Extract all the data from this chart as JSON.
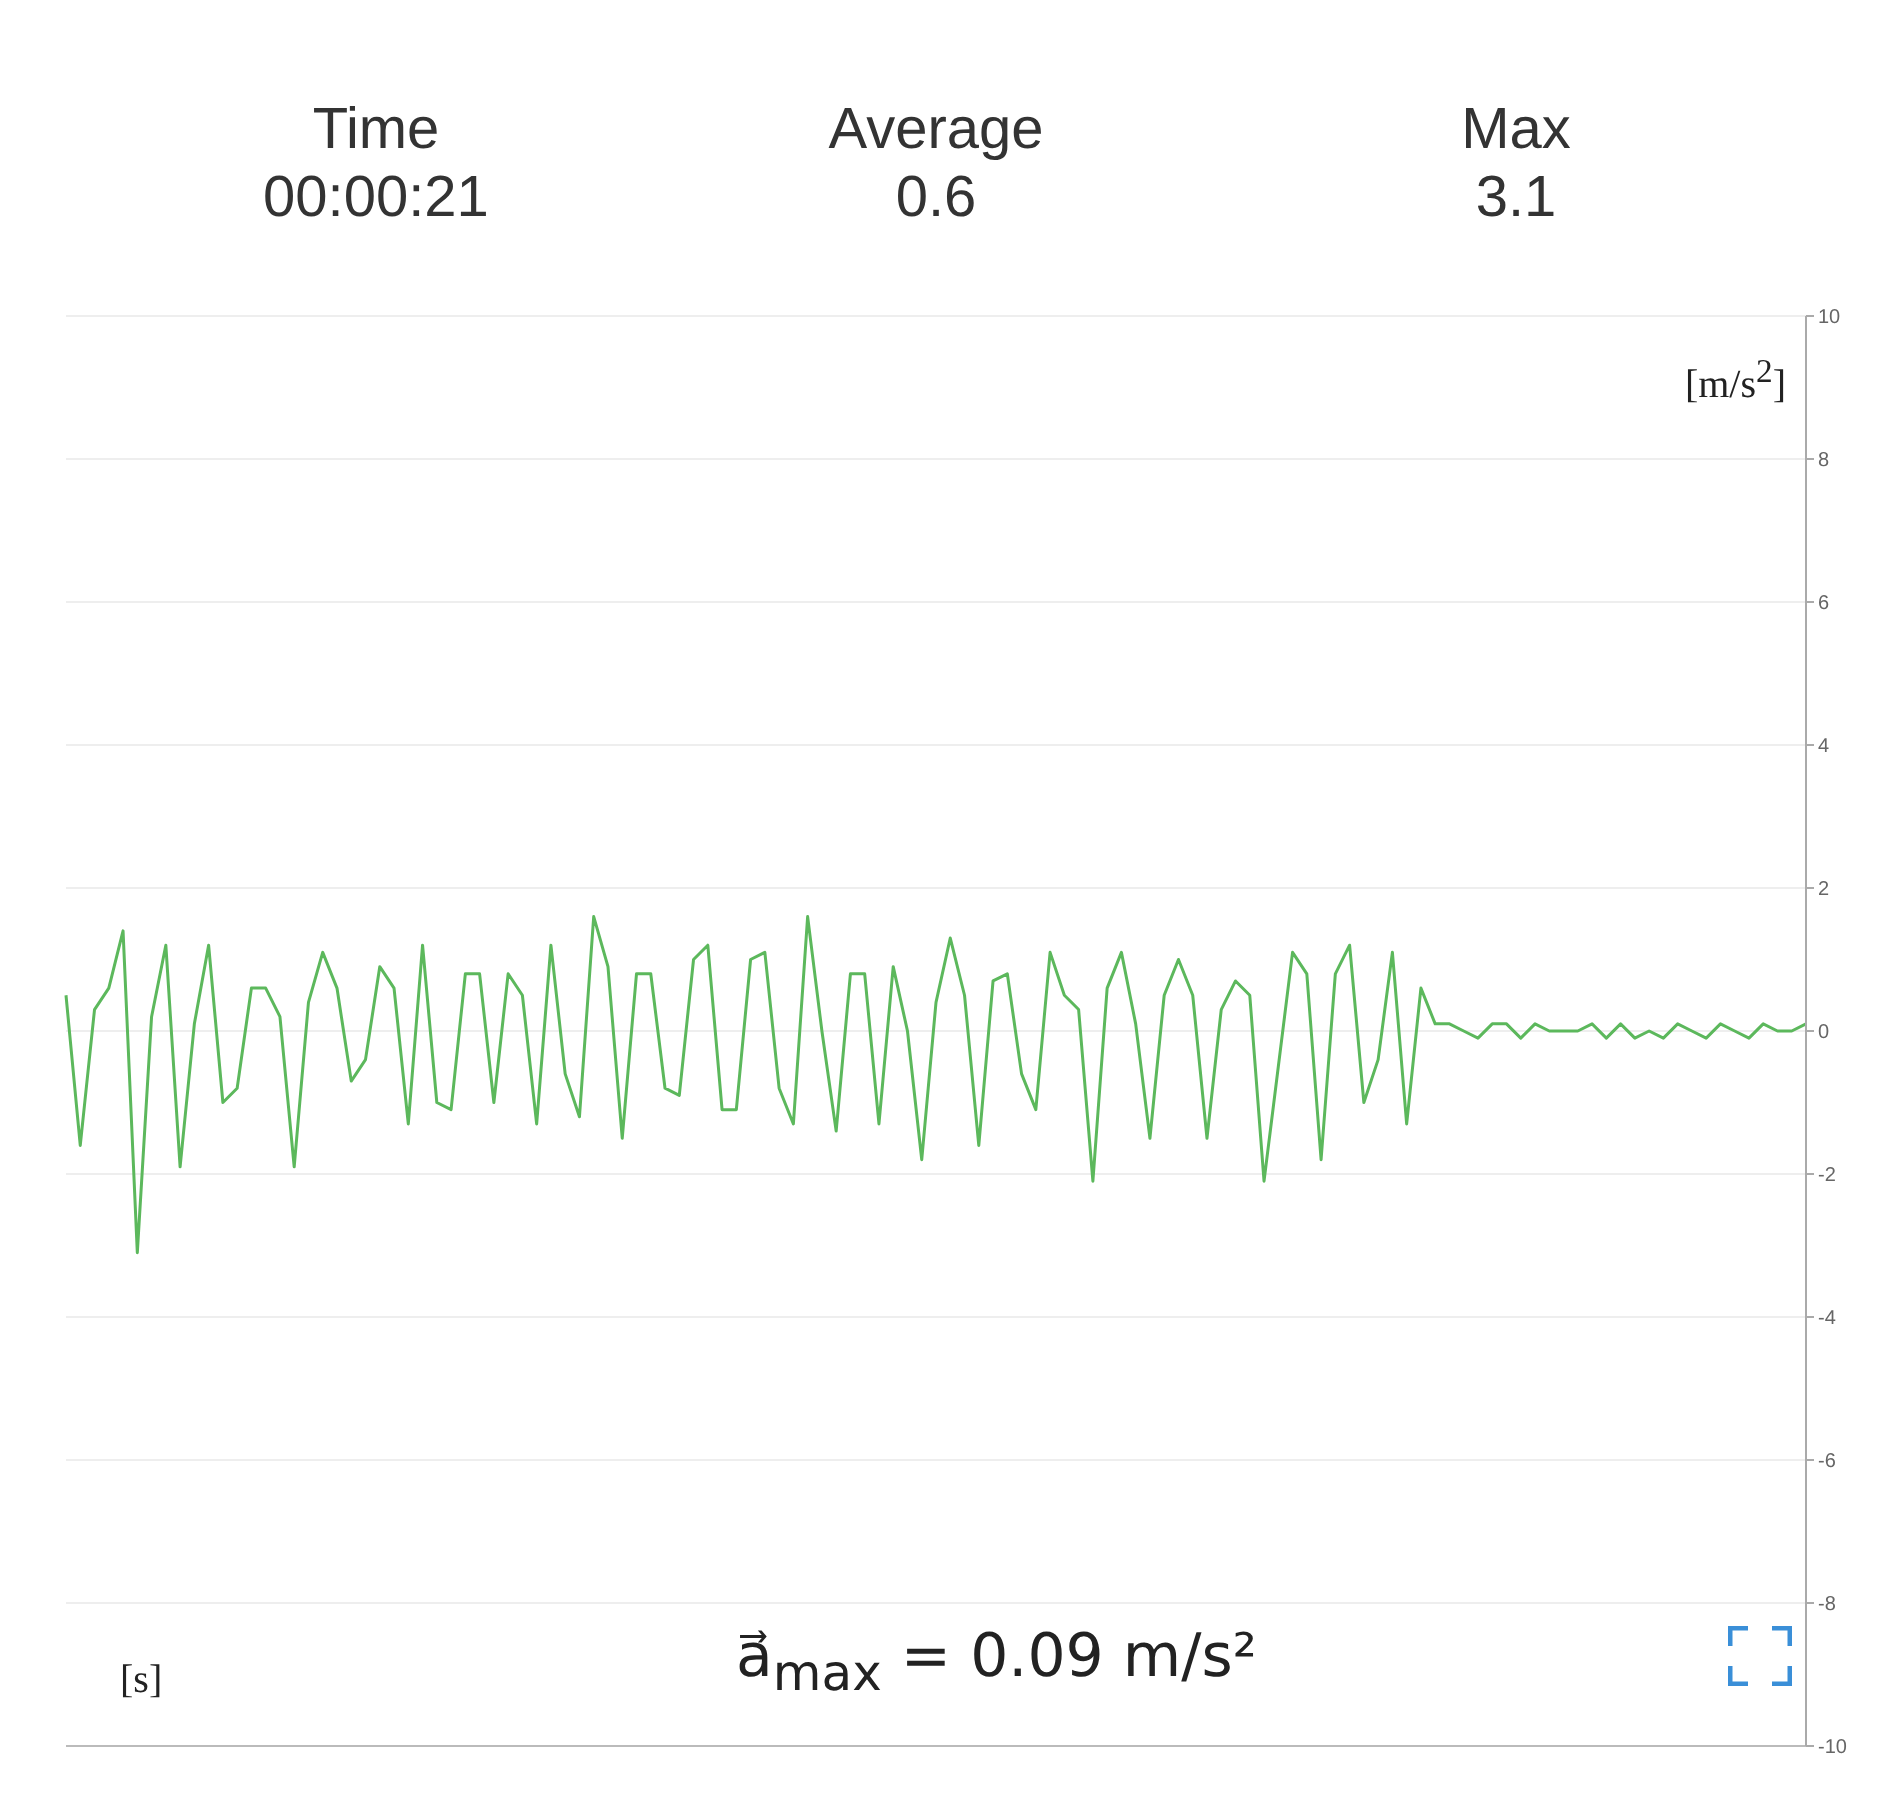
{
  "chart_data": {
    "type": "line",
    "xlabel": "[s]",
    "ylabel": "[m/s$^{2}$]",
    "annotations": [
      "Time\n00:00:21",
      "Average\n0.6",
      "Max\n3.1",
      "a⃗$_{max}$ = 0.09 m/s²"
    ],
    "categories": [
      null,
      null,
      null,
      null,
      null,
      null,
      null,
      null,
      null,
      null,
      null,
      null,
      null,
      null,
      null,
      null,
      null,
      null,
      null,
      null,
      null,
      null,
      null,
      null,
      null,
      null,
      null,
      null,
      null,
      null,
      null,
      null,
      null,
      null,
      null,
      null,
      null,
      null,
      null,
      null,
      null,
      null,
      null,
      null,
      null,
      null,
      null,
      null,
      null,
      null,
      null,
      null,
      null,
      null,
      null,
      null,
      null,
      null,
      null,
      null,
      null,
      null,
      null,
      null,
      null,
      null,
      null,
      null,
      null,
      null,
      null,
      null,
      null,
      null,
      null,
      null,
      null,
      null,
      null,
      null,
      null,
      null,
      null,
      null,
      null,
      null,
      null,
      null,
      null,
      null,
      null,
      null,
      null,
      null,
      null,
      null,
      null,
      null,
      null,
      null,
      null,
      null,
      null,
      null,
      null,
      null,
      null,
      null,
      null,
      null,
      null,
      null,
      null,
      null,
      null,
      null,
      null,
      null,
      null,
      null,
      null,
      null,
      null
    ],
    "series": [
      {
        "color": "#5cb85c",
        "values": [
          0.5,
          -1.6,
          0.3,
          0.6,
          1.4,
          -3.1,
          0.2,
          1.2,
          -1.9,
          0.1,
          1.2,
          -1.0,
          -0.8,
          0.6,
          0.6,
          0.2,
          -1.9,
          0.4,
          1.1,
          0.6,
          -0.7,
          -0.4,
          0.9,
          0.6,
          -1.3,
          1.2,
          -1.0,
          -1.1,
          0.8,
          0.8,
          -1.0,
          0.8,
          0.5,
          -1.3,
          1.2,
          -0.6,
          -1.2,
          1.6,
          0.9,
          -1.5,
          0.8,
          0.8,
          -0.8,
          -0.9,
          1.0,
          1.2,
          -1.1,
          -1.1,
          1.0,
          1.1,
          -0.8,
          -1.3,
          1.6,
          0,
          -1.4,
          0.8,
          0.8,
          -1.3,
          0.9,
          0,
          -1.8,
          0.4,
          1.3,
          0.5,
          -1.6,
          0.7,
          0.8,
          -0.6,
          -1.1,
          1.1,
          0.5,
          0.3,
          -2.1,
          0.6,
          1.1,
          0.1,
          -1.5,
          0.5,
          1.0,
          0.5,
          -1.5,
          0.3,
          0.7,
          0.5,
          -2.1,
          -0.5,
          1.1,
          0.8,
          -1.8,
          0.8,
          1.2,
          -1.0,
          -0.4,
          1.1,
          -1.3,
          0.6,
          0.1,
          0.1,
          0,
          -0.1,
          0.1,
          0.1,
          -0.1,
          0.1,
          0,
          0,
          0,
          0.1,
          -0.1,
          0.1,
          -0.1,
          0,
          -0.1,
          0.1,
          0,
          -0.1,
          0.1,
          0,
          -0.1,
          0.1,
          0,
          0,
          0.1
        ]
      }
    ],
    "ylim": [
      -10,
      10
    ],
    "yticks": [
      -10,
      -8,
      -6,
      -4,
      -2,
      0,
      2,
      4,
      6,
      8,
      10
    ],
    "grid": "y",
    "marker": "none",
    "line_style": "solid"
  }
}
